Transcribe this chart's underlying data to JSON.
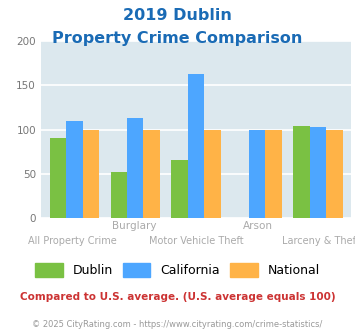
{
  "title_line1": "2019 Dublin",
  "title_line2": "Property Crime Comparison",
  "categories": [
    "All Property Crime",
    "Burglary",
    "Motor Vehicle Theft",
    "Arson",
    "Larceny & Theft"
  ],
  "group_top_labels": {
    "1": "Burglary",
    "3": "Arson"
  },
  "group_bottom_labels": {
    "0": "All Property Crime",
    "2": "Motor Vehicle Theft",
    "4": "Larceny & Theft"
  },
  "dublin": [
    90,
    52,
    65,
    0,
    104
  ],
  "california": [
    110,
    113,
    163,
    100,
    103
  ],
  "national": [
    100,
    100,
    100,
    100,
    100
  ],
  "color_dublin": "#7ac143",
  "color_california": "#4da6ff",
  "color_national": "#ffb347",
  "ylim": [
    0,
    200
  ],
  "yticks": [
    0,
    50,
    100,
    150,
    200
  ],
  "background_plot": "#dce8ee",
  "background_fig": "#ffffff",
  "title_color": "#1a6bb5",
  "top_label_color": "#aaaaaa",
  "bottom_label_color": "#aaaaaa",
  "note": "Compared to U.S. average. (U.S. average equals 100)",
  "footer": "© 2025 CityRating.com - https://www.cityrating.com/crime-statistics/",
  "note_color": "#cc3333",
  "footer_color": "#999999",
  "legend_labels": [
    "Dublin",
    "California",
    "National"
  ]
}
